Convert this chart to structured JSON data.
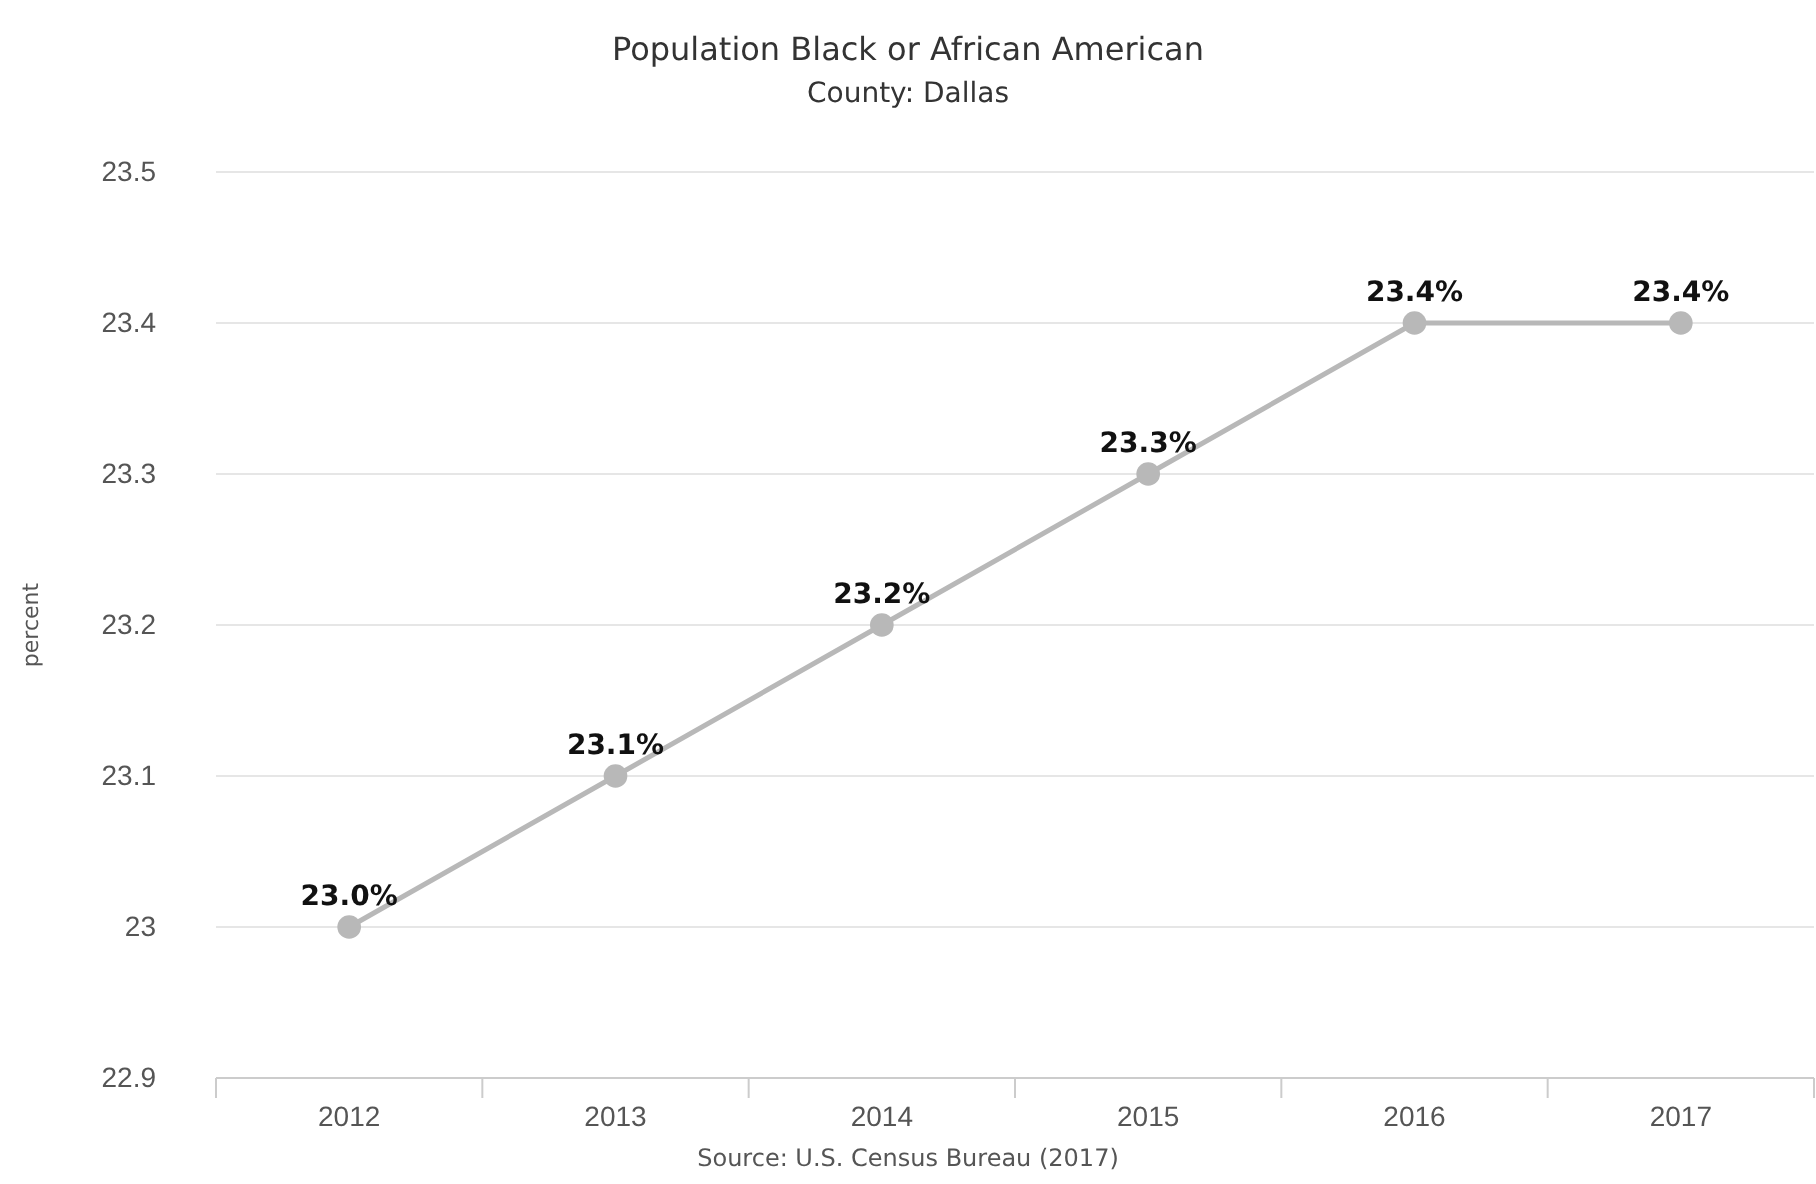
{
  "chart_data": {
    "type": "line",
    "title": "Population Black or African American",
    "subtitle": "County: Dallas",
    "ylabel": "percent",
    "annotations": [
      "Source: U.S. Census Bureau (2017)"
    ],
    "categories": [
      "2012",
      "2013",
      "2014",
      "2015",
      "2016",
      "2017"
    ],
    "series": [
      {
        "color": "#b8b8b8",
        "values": [
          23.0,
          23.1,
          23.2,
          23.3,
          23.4,
          23.4
        ],
        "value_labels": [
          "23.0%",
          "23.1%",
          "23.2%",
          "23.3%",
          "23.4%",
          "23.4%"
        ]
      }
    ],
    "ylim": [
      22.9,
      23.5
    ],
    "yticks": [
      22.9,
      23,
      23.1,
      23.2,
      23.3,
      23.4,
      23.5
    ],
    "grid": "y",
    "marker": "circle",
    "line_style": "solid"
  }
}
